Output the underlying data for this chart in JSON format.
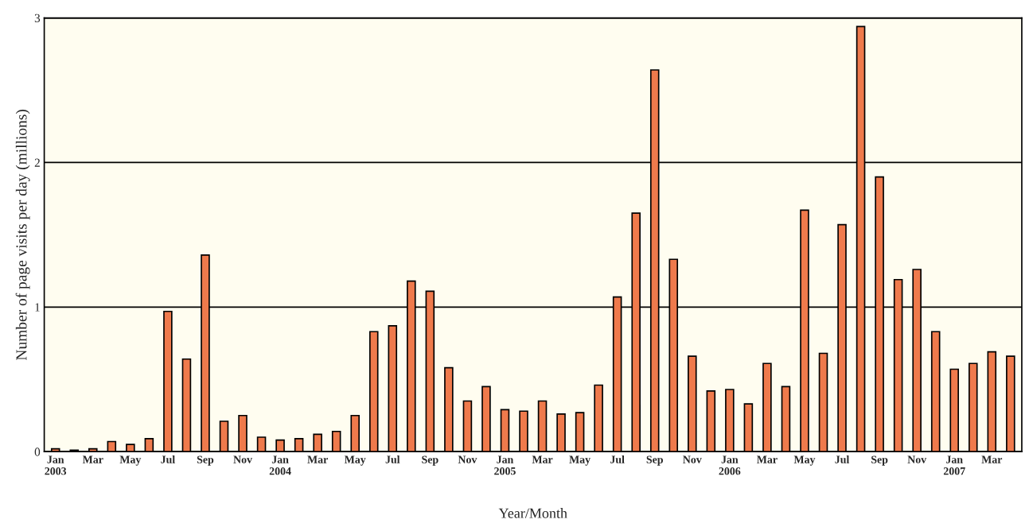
{
  "chart_data": {
    "type": "bar",
    "xlabel": "Year/Month",
    "ylabel": "Number of page visits per day (millions)",
    "categories": [
      "Jan\n2003",
      null,
      "Mar",
      null,
      "May",
      null,
      "Jul",
      null,
      "Sep",
      null,
      "Nov",
      null,
      "Jan\n2004",
      null,
      "Mar",
      null,
      "May",
      null,
      "Jul",
      null,
      "Sep",
      null,
      "Nov",
      null,
      "Jan\n2005",
      null,
      "Mar",
      null,
      "May",
      null,
      "Jul",
      null,
      "Sep",
      null,
      "Nov",
      null,
      "Jan\n2006",
      null,
      "Mar",
      null,
      "May",
      null,
      "Jul",
      null,
      "Sep",
      null,
      "Nov",
      null,
      "Jan\n2007",
      null,
      "Mar",
      null
    ],
    "values": [
      0.02,
      0.01,
      0.02,
      0.07,
      0.05,
      0.09,
      0.97,
      0.64,
      1.36,
      0.21,
      0.25,
      0.1,
      0.08,
      0.09,
      0.12,
      0.14,
      0.25,
      0.83,
      0.87,
      1.18,
      1.11,
      0.58,
      0.35,
      0.45,
      0.29,
      0.28,
      0.35,
      0.26,
      0.27,
      0.46,
      1.07,
      1.65,
      2.64,
      1.33,
      0.66,
      0.42,
      0.43,
      0.33,
      0.61,
      0.45,
      1.67,
      0.68,
      1.57,
      2.94,
      1.9,
      1.19,
      1.26,
      0.83,
      0.57,
      0.61,
      0.69,
      0.66
    ],
    "color": "#ef7a4c",
    "ylim": [
      0,
      3
    ],
    "yticks": [
      0,
      1,
      2,
      3
    ],
    "grid": "y"
  }
}
